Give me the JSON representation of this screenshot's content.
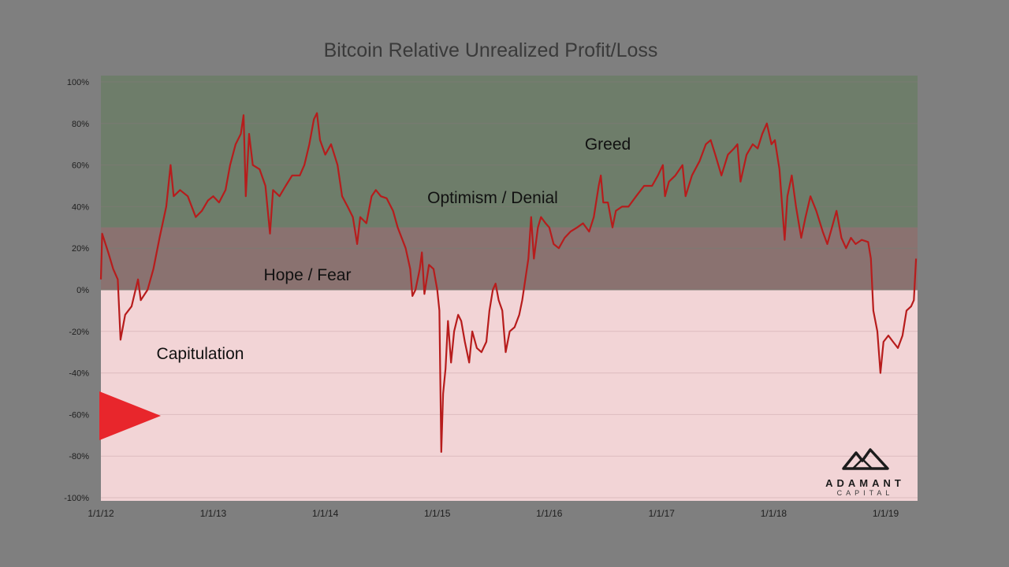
{
  "chart_data": {
    "type": "line",
    "title": "Bitcoin Relative Unrealized Profit/Loss",
    "xlabel": "",
    "ylabel": "",
    "ylim": [
      -100,
      100
    ],
    "yticks": [
      "-100%",
      "-80%",
      "-60%",
      "-40%",
      "-20%",
      "0%",
      "20%",
      "40%",
      "60%",
      "80%",
      "100%"
    ],
    "xticks": [
      "1/1/12",
      "1/1/13",
      "1/1/14",
      "1/1/15",
      "1/1/16",
      "1/1/17",
      "1/1/18",
      "1/1/19"
    ],
    "xlim": [
      "2012-01-01",
      "2019-04-15"
    ],
    "grid": true,
    "line_color": "#b71c1c",
    "zones": [
      {
        "label": "Greed",
        "from": 30,
        "to": 100,
        "color": "#6f7f6b"
      },
      {
        "label": "Optimism / Denial",
        "from": 30,
        "to": 30,
        "color": "#8a7a6c"
      },
      {
        "label": "Hope / Fear",
        "from": 0,
        "to": 30,
        "color": "#8a7170"
      },
      {
        "label": "Capitulation",
        "from": -100,
        "to": 0,
        "color": "#f2d3d5"
      }
    ],
    "annotations": [
      "Greed",
      "Optimism / Denial",
      "Hope / Fear",
      "Capitulation"
    ],
    "series": [
      {
        "name": "",
        "points": [
          [
            "2012-01-01",
            5
          ],
          [
            "2012-01-05",
            27
          ],
          [
            "2012-01-25",
            18
          ],
          [
            "2012-02-10",
            10
          ],
          [
            "2012-02-25",
            5
          ],
          [
            "2012-03-05",
            -24
          ],
          [
            "2012-03-20",
            -12
          ],
          [
            "2012-04-10",
            -8
          ],
          [
            "2012-05-01",
            5
          ],
          [
            "2012-05-10",
            -5
          ],
          [
            "2012-06-01",
            0
          ],
          [
            "2012-06-20",
            10
          ],
          [
            "2012-07-10",
            25
          ],
          [
            "2012-08-01",
            40
          ],
          [
            "2012-08-15",
            60
          ],
          [
            "2012-08-25",
            45
          ],
          [
            "2012-09-15",
            48
          ],
          [
            "2012-10-10",
            45
          ],
          [
            "2012-11-05",
            35
          ],
          [
            "2012-11-25",
            38
          ],
          [
            "2012-12-15",
            43
          ],
          [
            "2013-01-01",
            45
          ],
          [
            "2013-01-20",
            42
          ],
          [
            "2013-02-10",
            48
          ],
          [
            "2013-02-25",
            60
          ],
          [
            "2013-03-15",
            70
          ],
          [
            "2013-04-01",
            75
          ],
          [
            "2013-04-10",
            84
          ],
          [
            "2013-04-17",
            45
          ],
          [
            "2013-04-28",
            75
          ],
          [
            "2013-05-10",
            60
          ],
          [
            "2013-06-01",
            58
          ],
          [
            "2013-06-20",
            50
          ],
          [
            "2013-07-05",
            27
          ],
          [
            "2013-07-15",
            48
          ],
          [
            "2013-08-05",
            45
          ],
          [
            "2013-08-25",
            50
          ],
          [
            "2013-09-15",
            55
          ],
          [
            "2013-10-10",
            55
          ],
          [
            "2013-10-25",
            60
          ],
          [
            "2013-11-10",
            70
          ],
          [
            "2013-11-25",
            82
          ],
          [
            "2013-12-05",
            85
          ],
          [
            "2013-12-15",
            72
          ],
          [
            "2014-01-01",
            65
          ],
          [
            "2014-01-20",
            70
          ],
          [
            "2014-02-10",
            60
          ],
          [
            "2014-02-25",
            45
          ],
          [
            "2014-03-15",
            40
          ],
          [
            "2014-04-01",
            35
          ],
          [
            "2014-04-15",
            22
          ],
          [
            "2014-04-25",
            35
          ],
          [
            "2014-05-15",
            32
          ],
          [
            "2014-06-01",
            45
          ],
          [
            "2014-06-15",
            48
          ],
          [
            "2014-07-01",
            45
          ],
          [
            "2014-07-20",
            44
          ],
          [
            "2014-08-10",
            38
          ],
          [
            "2014-08-25",
            30
          ],
          [
            "2014-09-20",
            20
          ],
          [
            "2014-10-05",
            10
          ],
          [
            "2014-10-12",
            -3
          ],
          [
            "2014-10-22",
            0
          ],
          [
            "2014-11-05",
            10
          ],
          [
            "2014-11-12",
            18
          ],
          [
            "2014-11-20",
            -2
          ],
          [
            "2014-12-05",
            12
          ],
          [
            "2014-12-20",
            10
          ],
          [
            "2015-01-01",
            0
          ],
          [
            "2015-01-08",
            -10
          ],
          [
            "2015-01-14",
            -78
          ],
          [
            "2015-01-20",
            -50
          ],
          [
            "2015-01-28",
            -38
          ],
          [
            "2015-02-05",
            -15
          ],
          [
            "2015-02-15",
            -35
          ],
          [
            "2015-02-25",
            -20
          ],
          [
            "2015-03-10",
            -12
          ],
          [
            "2015-03-20",
            -15
          ],
          [
            "2015-04-01",
            -25
          ],
          [
            "2015-04-15",
            -35
          ],
          [
            "2015-04-25",
            -20
          ],
          [
            "2015-05-10",
            -28
          ],
          [
            "2015-05-25",
            -30
          ],
          [
            "2015-06-10",
            -25
          ],
          [
            "2015-06-20",
            -10
          ],
          [
            "2015-07-01",
            0
          ],
          [
            "2015-07-10",
            3
          ],
          [
            "2015-07-20",
            -5
          ],
          [
            "2015-08-01",
            -10
          ],
          [
            "2015-08-12",
            -30
          ],
          [
            "2015-08-25",
            -20
          ],
          [
            "2015-09-10",
            -18
          ],
          [
            "2015-09-25",
            -12
          ],
          [
            "2015-10-05",
            -5
          ],
          [
            "2015-10-15",
            5
          ],
          [
            "2015-10-25",
            15
          ],
          [
            "2015-11-03",
            35
          ],
          [
            "2015-11-12",
            15
          ],
          [
            "2015-11-25",
            30
          ],
          [
            "2015-12-05",
            35
          ],
          [
            "2015-12-20",
            32
          ],
          [
            "2016-01-01",
            30
          ],
          [
            "2016-01-15",
            22
          ],
          [
            "2016-02-01",
            20
          ],
          [
            "2016-02-20",
            25
          ],
          [
            "2016-03-10",
            28
          ],
          [
            "2016-04-01",
            30
          ],
          [
            "2016-04-20",
            32
          ],
          [
            "2016-05-10",
            28
          ],
          [
            "2016-05-25",
            35
          ],
          [
            "2016-06-10",
            50
          ],
          [
            "2016-06-17",
            55
          ],
          [
            "2016-06-25",
            42
          ],
          [
            "2016-07-10",
            42
          ],
          [
            "2016-07-25",
            30
          ],
          [
            "2016-08-05",
            38
          ],
          [
            "2016-08-25",
            40
          ],
          [
            "2016-09-15",
            40
          ],
          [
            "2016-10-10",
            45
          ],
          [
            "2016-11-05",
            50
          ],
          [
            "2016-12-01",
            50
          ],
          [
            "2016-12-20",
            55
          ],
          [
            "2017-01-05",
            60
          ],
          [
            "2017-01-12",
            45
          ],
          [
            "2017-01-25",
            52
          ],
          [
            "2017-02-15",
            55
          ],
          [
            "2017-03-10",
            60
          ],
          [
            "2017-03-20",
            45
          ],
          [
            "2017-04-10",
            55
          ],
          [
            "2017-05-05",
            62
          ],
          [
            "2017-05-25",
            70
          ],
          [
            "2017-06-10",
            72
          ],
          [
            "2017-06-25",
            65
          ],
          [
            "2017-07-15",
            55
          ],
          [
            "2017-08-05",
            65
          ],
          [
            "2017-08-25",
            68
          ],
          [
            "2017-09-05",
            70
          ],
          [
            "2017-09-15",
            52
          ],
          [
            "2017-10-05",
            65
          ],
          [
            "2017-10-25",
            70
          ],
          [
            "2017-11-10",
            68
          ],
          [
            "2017-11-25",
            75
          ],
          [
            "2017-12-10",
            80
          ],
          [
            "2017-12-25",
            70
          ],
          [
            "2018-01-05",
            72
          ],
          [
            "2018-01-20",
            58
          ],
          [
            "2018-02-06",
            24
          ],
          [
            "2018-02-15",
            45
          ],
          [
            "2018-03-01",
            55
          ],
          [
            "2018-03-15",
            40
          ],
          [
            "2018-04-01",
            25
          ],
          [
            "2018-04-15",
            35
          ],
          [
            "2018-05-01",
            45
          ],
          [
            "2018-05-20",
            38
          ],
          [
            "2018-06-10",
            28
          ],
          [
            "2018-06-25",
            22
          ],
          [
            "2018-07-10",
            30
          ],
          [
            "2018-07-25",
            38
          ],
          [
            "2018-08-10",
            25
          ],
          [
            "2018-08-25",
            20
          ],
          [
            "2018-09-10",
            25
          ],
          [
            "2018-09-25",
            22
          ],
          [
            "2018-10-15",
            24
          ],
          [
            "2018-11-05",
            23
          ],
          [
            "2018-11-14",
            15
          ],
          [
            "2018-11-22",
            -10
          ],
          [
            "2018-12-05",
            -20
          ],
          [
            "2018-12-15",
            -40
          ],
          [
            "2018-12-25",
            -25
          ],
          [
            "2019-01-10",
            -22
          ],
          [
            "2019-01-25",
            -25
          ],
          [
            "2019-02-10",
            -28
          ],
          [
            "2019-02-25",
            -22
          ],
          [
            "2019-03-10",
            -10
          ],
          [
            "2019-03-25",
            -8
          ],
          [
            "2019-04-03",
            -5
          ],
          [
            "2019-04-10",
            15
          ]
        ]
      }
    ]
  },
  "logo": {
    "name": "ADAMANT",
    "sub": "CAPITAL"
  }
}
